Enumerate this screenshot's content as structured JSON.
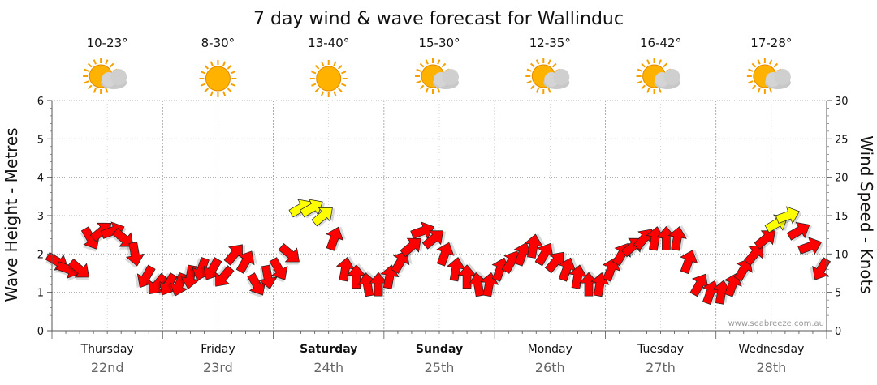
{
  "chart_data": {
    "type": "line",
    "title": "7 day wind & wave forecast for Wallinduc",
    "ylabel_left": "Wave Height - Metres",
    "ylabel_right": "Wind Speed - Knots",
    "ylim_left": [
      0,
      6
    ],
    "ylim_right": [
      0,
      30
    ],
    "yticks_left": [
      "0",
      "1",
      "2",
      "3",
      "4",
      "5",
      "6"
    ],
    "yticks_right": [
      "0",
      "5",
      "10",
      "15",
      "20",
      "25",
      "30"
    ],
    "grid": true,
    "x_range_days": [
      0,
      7
    ],
    "days": [
      {
        "name": "Thursday",
        "date": "22nd",
        "temp": "10-23°",
        "weather": "partly-cloudy-icon",
        "bold": false
      },
      {
        "name": "Friday",
        "date": "23rd",
        "temp": "8-30°",
        "weather": "sunny-icon",
        "bold": false
      },
      {
        "name": "Saturday",
        "date": "24th",
        "temp": "13-40°",
        "weather": "sunny-icon",
        "bold": true
      },
      {
        "name": "Sunday",
        "date": "25th",
        "temp": "15-30°",
        "weather": "partly-cloudy-icon",
        "bold": true
      },
      {
        "name": "Monday",
        "date": "26th",
        "temp": "12-35°",
        "weather": "partly-cloudy-icon",
        "bold": false
      },
      {
        "name": "Tuesday",
        "date": "27th",
        "temp": "16-42°",
        "weather": "partly-cloudy-icon",
        "bold": false
      },
      {
        "name": "Wednesday",
        "date": "28th",
        "temp": "17-28°",
        "weather": "partly-cloudy-icon",
        "bold": false
      }
    ],
    "series": [
      {
        "name": "Wind Speed - Knots",
        "x": [
          0.0,
          0.1,
          0.2,
          0.3,
          0.4,
          0.5,
          0.6,
          0.7,
          0.8,
          0.9,
          1.0,
          1.1,
          1.2,
          1.3,
          1.4,
          1.5,
          1.6,
          1.7,
          1.8,
          1.9,
          2.0,
          2.1,
          2.2,
          2.3,
          2.4,
          2.5,
          2.6,
          2.7,
          2.8,
          2.9,
          3.0,
          3.1,
          3.2,
          3.3,
          3.4,
          3.5,
          3.6,
          3.7,
          3.8,
          3.9,
          4.0,
          4.1,
          4.2,
          4.3,
          4.4,
          4.5,
          4.6,
          4.7,
          4.8,
          4.9,
          5.0,
          5.1,
          5.2,
          5.3,
          5.4,
          5.5,
          5.6,
          5.7,
          5.8,
          5.9,
          6.0,
          6.1,
          6.2,
          6.3,
          6.4,
          6.5,
          6.6,
          6.7,
          6.8,
          6.9
        ],
        "values": [
          9,
          8,
          8,
          12,
          13,
          13,
          12,
          10,
          7,
          6,
          6,
          6,
          7,
          8,
          8,
          7,
          10,
          9,
          6,
          7,
          8,
          10,
          16,
          16,
          15,
          12,
          8,
          7,
          6,
          6,
          7,
          9,
          11,
          13,
          12,
          10,
          8,
          7,
          6,
          6,
          8,
          9,
          10,
          11,
          10,
          9,
          8,
          7,
          6,
          6,
          8,
          10,
          11,
          12,
          12,
          12,
          12,
          9,
          6,
          5,
          5,
          6,
          8,
          10,
          12,
          14,
          15,
          13,
          11,
          8
        ],
        "direction": [
          30,
          20,
          40,
          60,
          -40,
          -20,
          40,
          80,
          120,
          130,
          120,
          110,
          100,
          110,
          120,
          130,
          -50,
          -60,
          60,
          80,
          60,
          40,
          -30,
          -30,
          -40,
          -70,
          -80,
          -90,
          -100,
          -90,
          -80,
          -60,
          -40,
          -20,
          -40,
          -70,
          -80,
          -90,
          -100,
          -80,
          -70,
          -60,
          -70,
          -80,
          -60,
          -50,
          -70,
          -80,
          -90,
          -80,
          -70,
          -60,
          -40,
          -50,
          -80,
          -90,
          -80,
          -70,
          -60,
          -70,
          -80,
          -70,
          -60,
          -50,
          -40,
          -30,
          -20,
          -30,
          -20,
          120
        ],
        "colors": {
          "strong": "#ff0000",
          "light": "#ffff00"
        }
      }
    ]
  },
  "watermark": "www.seabreeze.com.au",
  "colors": {
    "grid": "#999999",
    "axis": "#555555",
    "text": "#111111",
    "date": "#666666"
  }
}
